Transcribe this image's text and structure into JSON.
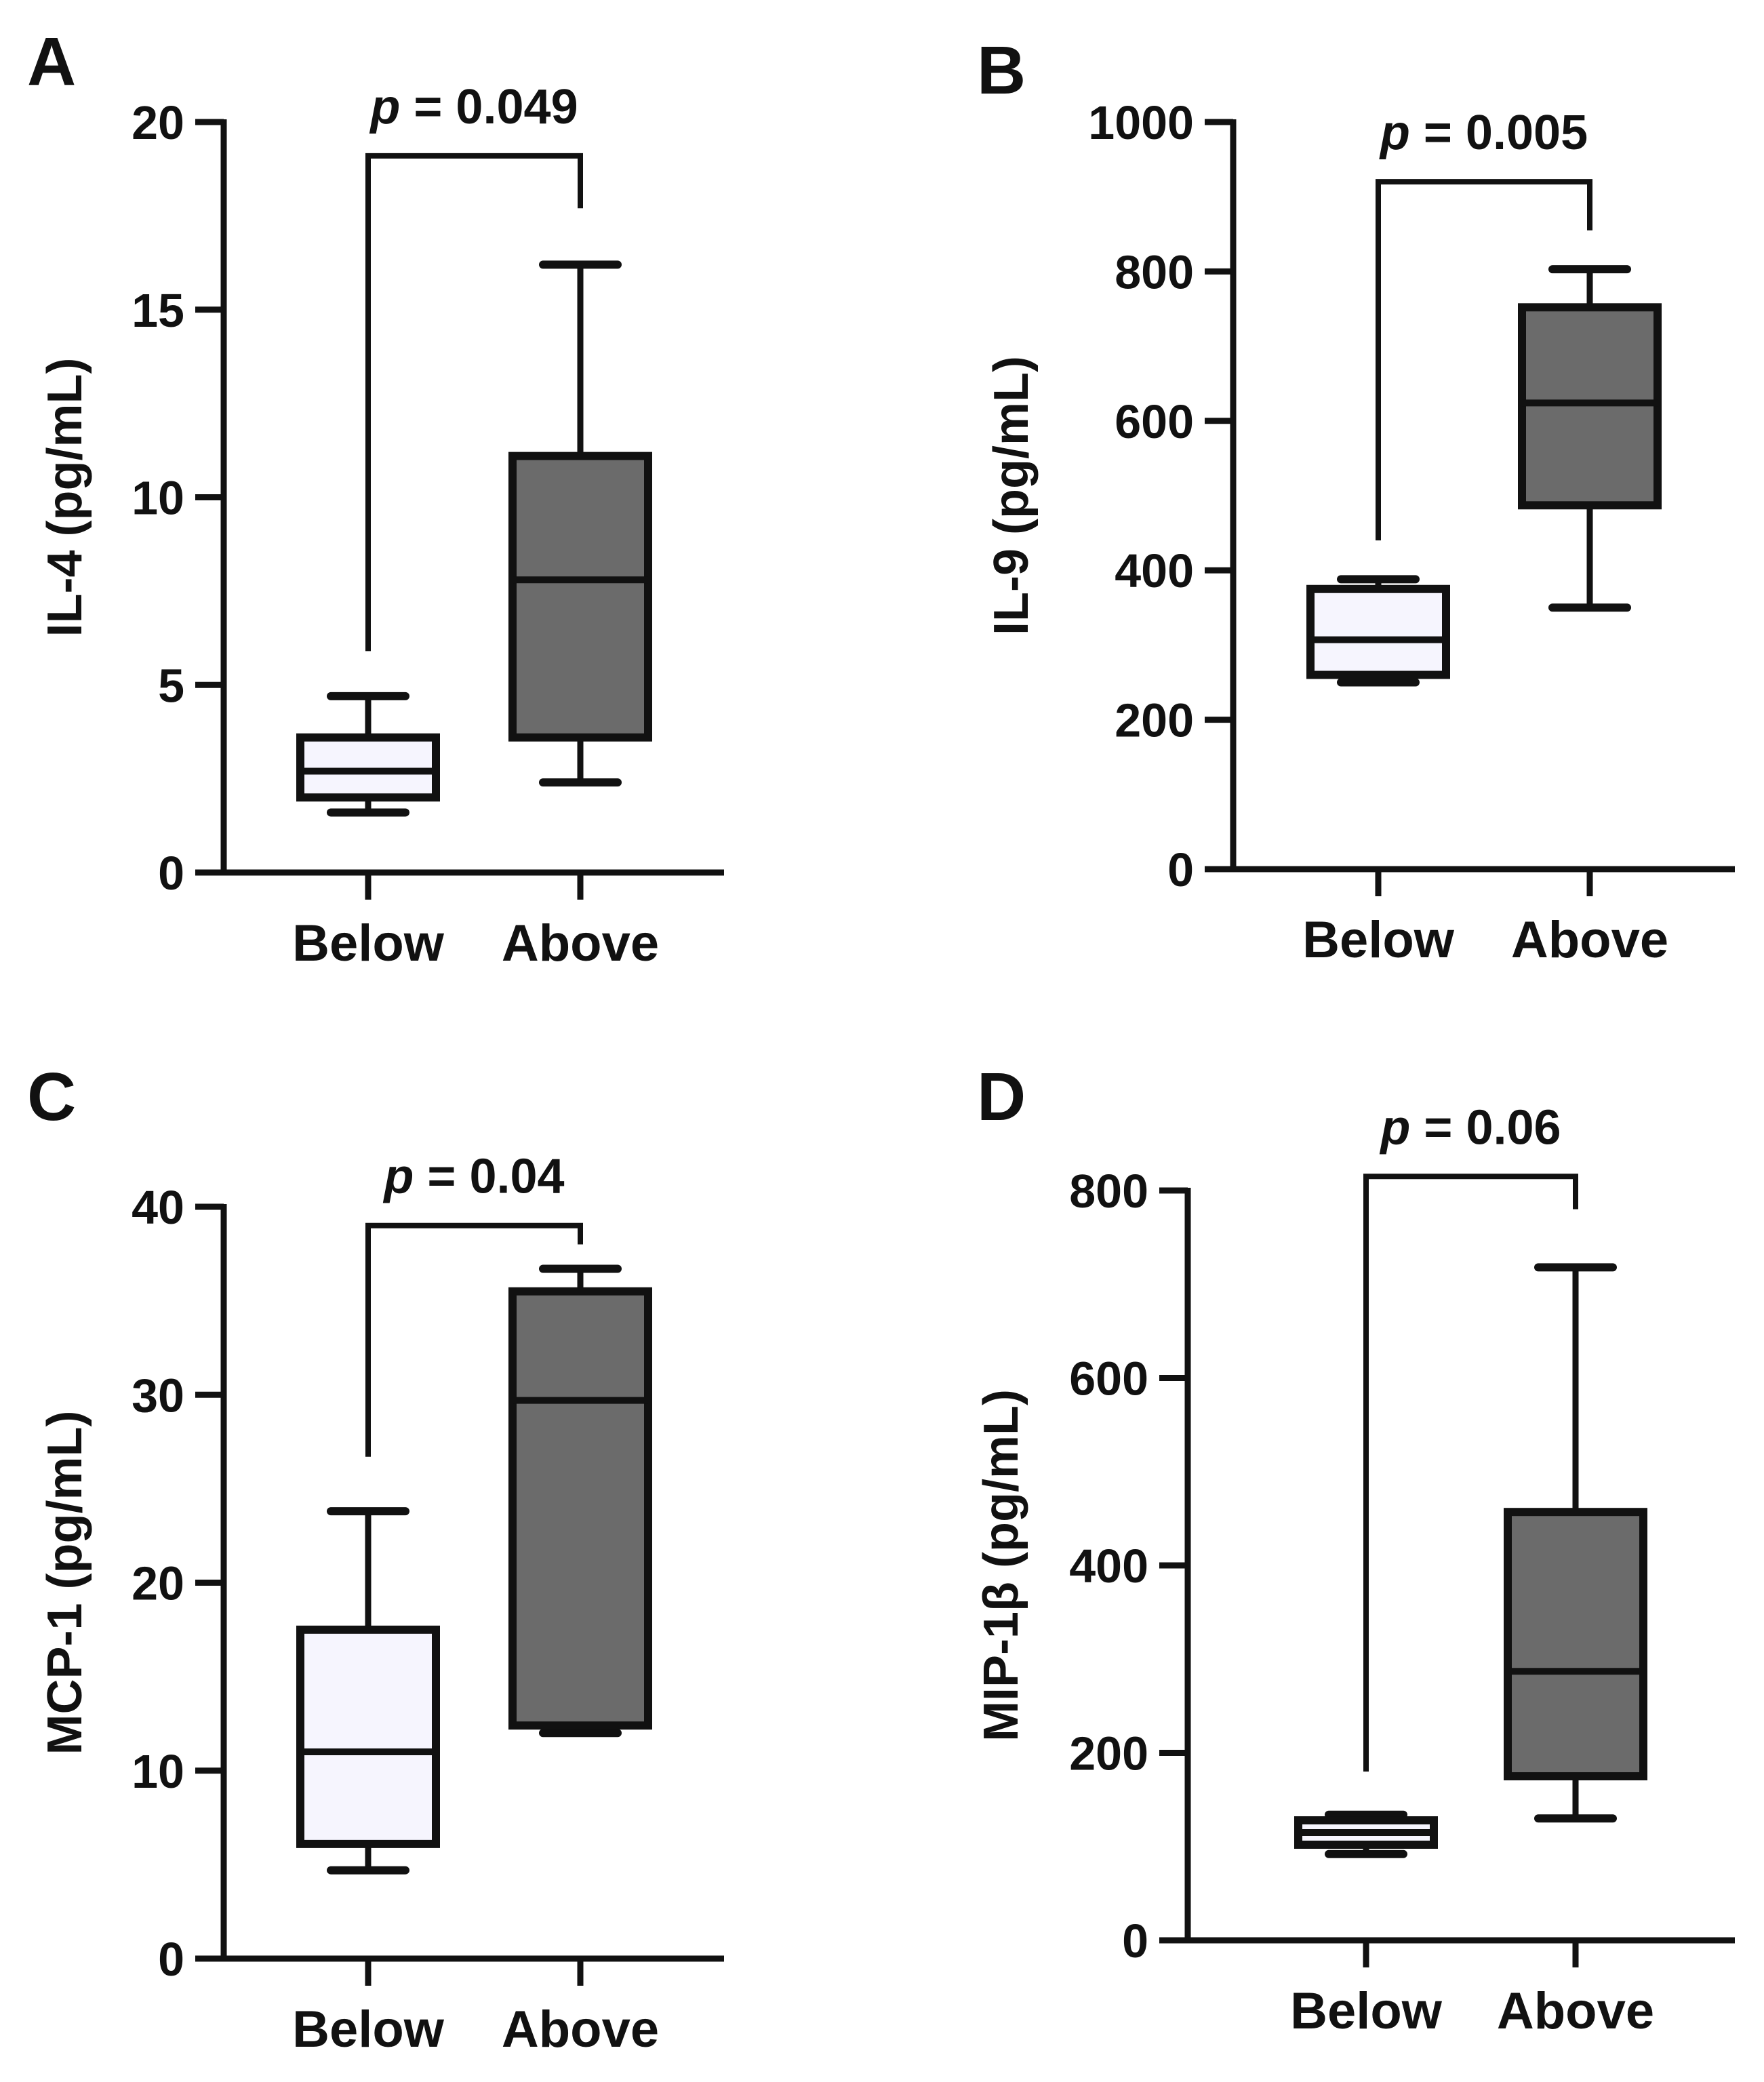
{
  "figure": {
    "panels": [
      "A",
      "B",
      "C",
      "D"
    ]
  },
  "chart_data": [
    {
      "type": "box",
      "panel_label": "A",
      "ylabel": "IL-4 (pg/mL)",
      "ylim": [
        0,
        20
      ],
      "yticks": [
        0,
        5,
        10,
        15,
        20
      ],
      "categories": [
        "Below",
        "Above"
      ],
      "boxes": [
        {
          "name": "Below",
          "min": 1.6,
          "q1": 2.0,
          "median": 2.7,
          "q3": 3.6,
          "max": 4.7,
          "fill": "#f6f5fe"
        },
        {
          "name": "Above",
          "min": 2.4,
          "q1": 3.6,
          "median": 7.8,
          "q3": 11.1,
          "max": 16.2,
          "fill": "#6b6b6b"
        }
      ],
      "significance": {
        "p_symbol": "p",
        "p_text": " = 0.049",
        "bracket_top": 19.1,
        "left_end": 5.9,
        "right_end": 17.7
      }
    },
    {
      "type": "box",
      "panel_label": "B",
      "ylabel": "IL-9 (pg/mL)",
      "ylim": [
        0,
        1000
      ],
      "yticks": [
        0,
        200,
        400,
        600,
        800,
        1000
      ],
      "categories": [
        "Below",
        "Above"
      ],
      "boxes": [
        {
          "name": "Below",
          "min": 250,
          "q1": 260,
          "median": 307,
          "q3": 375,
          "max": 388,
          "fill": "#f6f5fe"
        },
        {
          "name": "Above",
          "min": 350,
          "q1": 487,
          "median": 624,
          "q3": 752,
          "max": 803,
          "fill": "#6b6b6b"
        }
      ],
      "significance": {
        "p_symbol": "p",
        "p_text": " = 0.005",
        "bracket_top": 920,
        "left_end": 440,
        "right_end": 855
      }
    },
    {
      "type": "box",
      "panel_label": "C",
      "ylabel": "MCP-1 (pg/mL)",
      "ylim": [
        0,
        40
      ],
      "yticks": [
        0,
        10,
        20,
        30,
        40
      ],
      "categories": [
        "Below",
        "Above"
      ],
      "boxes": [
        {
          "name": "Below",
          "min": 4.7,
          "q1": 6.1,
          "median": 11.0,
          "q3": 17.5,
          "max": 23.8,
          "fill": "#f6f5fe"
        },
        {
          "name": "Above",
          "min": 12.0,
          "q1": 12.4,
          "median": 29.7,
          "q3": 35.5,
          "max": 36.7,
          "fill": "#6b6b6b"
        }
      ],
      "significance": {
        "p_symbol": "p",
        "p_text": " = 0.04",
        "bracket_top": 39.0,
        "left_end": 26.7,
        "right_end": 38.0
      }
    },
    {
      "type": "box",
      "panel_label": "D",
      "ylabel": "MIP-1β (pg/mL)",
      "ylim": [
        0,
        800
      ],
      "yticks": [
        0,
        200,
        400,
        600,
        800
      ],
      "categories": [
        "Below",
        "Above"
      ],
      "boxes": [
        {
          "name": "Below",
          "min": 92,
          "q1": 102,
          "median": 115,
          "q3": 128,
          "max": 134,
          "fill": "#f6f5fe"
        },
        {
          "name": "Above",
          "min": 130,
          "q1": 175,
          "median": 287,
          "q3": 457,
          "max": 718,
          "fill": "#6b6b6b"
        }
      ],
      "significance": {
        "p_symbol": "p",
        "p_text": " = 0.06",
        "bracket_top": 815,
        "left_end": 180,
        "right_end": 780
      }
    }
  ]
}
